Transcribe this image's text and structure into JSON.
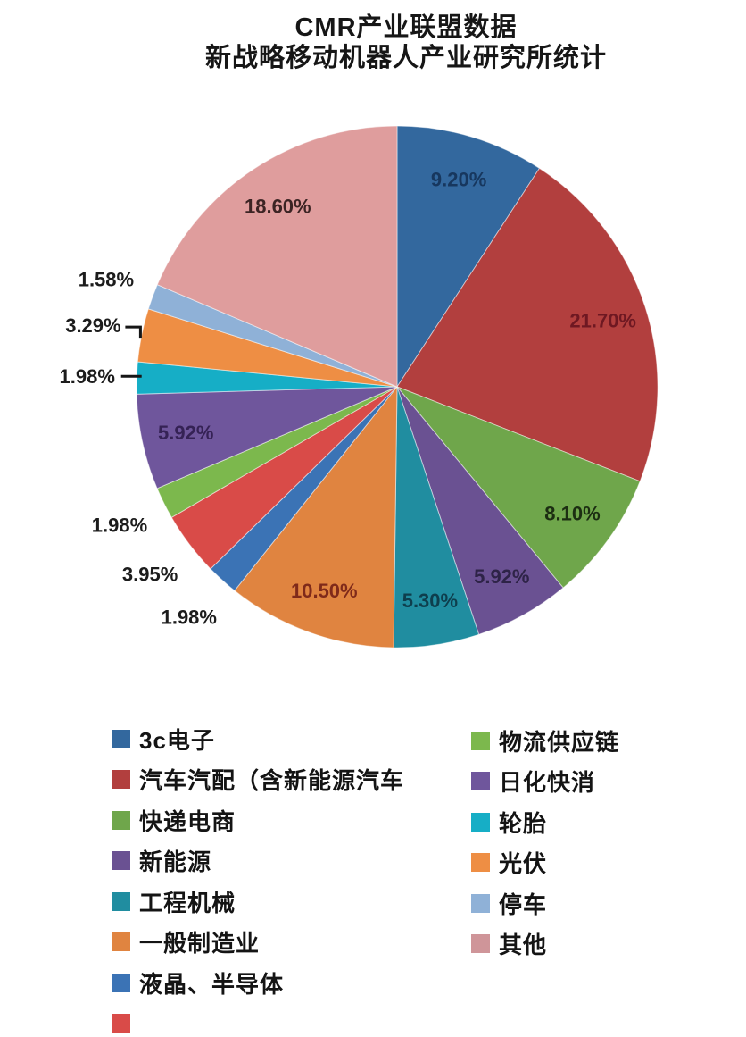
{
  "title": {
    "line1": "CMR产业联盟数据",
    "line2": "新战略移动机器人产业研究所统计"
  },
  "chart_data": {
    "type": "pie",
    "start_angle_deg": 0,
    "direction": "clockwise",
    "grid": false,
    "legend_position": "bottom-two-columns",
    "slices": [
      {
        "label": "3c电子",
        "value": 9.2,
        "pct_label": "9.20%",
        "color": "#33689e",
        "pct_color": "#17375e",
        "label_placement": "inside",
        "leader": "none"
      },
      {
        "label": "汽车汽配（含新能源汽车",
        "value": 21.7,
        "pct_label": "21.70%",
        "color": "#b23f3e",
        "pct_color": "#6e1822",
        "label_placement": "inside",
        "leader": "none"
      },
      {
        "label": "快递电商",
        "value": 8.1,
        "pct_label": "8.10%",
        "color": "#6fa64b",
        "pct_color": "#1c2e12",
        "label_placement": "inside",
        "leader": "none"
      },
      {
        "label": "新能源",
        "value": 5.92,
        "pct_label": "5.92%",
        "color": "#6a5192",
        "pct_color": "#2e2347",
        "label_placement": "inside",
        "leader": "none"
      },
      {
        "label": "工程机械",
        "value": 5.3,
        "pct_label": "5.30%",
        "color": "#208da0",
        "pct_color": "#0e3e4d",
        "label_placement": "inside",
        "leader": "none"
      },
      {
        "label": "一般制造业",
        "value": 10.5,
        "pct_label": "10.50%",
        "color": "#e08440",
        "pct_color": "#7f2a1a",
        "label_placement": "inside",
        "leader": "none"
      },
      {
        "label": "液晶、半导体",
        "value": 1.98,
        "pct_label": "1.98%",
        "color": "#3b73b5",
        "pct_color": "#1c1c1c",
        "label_placement": "outside",
        "leader": "none"
      },
      {
        "label": "",
        "value": 3.95,
        "pct_label": "3.95%",
        "color": "#d94b48",
        "pct_color": "#1c1c1c",
        "label_placement": "outside",
        "leader": "none"
      },
      {
        "label": "物流供应链",
        "value": 1.98,
        "pct_label": "1.98%",
        "color": "#7cb84d",
        "pct_color": "#1c1c1c",
        "label_placement": "outside",
        "leader": "none"
      },
      {
        "label": "日化快消",
        "value": 5.92,
        "pct_label": "5.92%",
        "color": "#6f569c",
        "pct_color": "#352255",
        "label_placement": "inside",
        "leader": "none"
      },
      {
        "label": "轮胎",
        "value": 1.98,
        "pct_label": "1.98%",
        "color": "#16aec6",
        "pct_color": "#1c1c1c",
        "label_placement": "outside",
        "leader": "straight"
      },
      {
        "label": "光伏",
        "value": 3.29,
        "pct_label": "3.29%",
        "color": "#ee8e44",
        "pct_color": "#1c1c1c",
        "label_placement": "outside",
        "leader": "elbow"
      },
      {
        "label": "停车",
        "value": 1.58,
        "pct_label": "1.58%",
        "color": "#8fb1d7",
        "pct_color": "#1c1c1c",
        "label_placement": "outside",
        "leader": "none"
      },
      {
        "label": "其他",
        "value": 18.6,
        "pct_label": "18.60%",
        "color": "#df9d9d",
        "pct_color": "#3c2424",
        "label_placement": "inside",
        "leader": "none"
      }
    ],
    "legend": {
      "left_column": [
        {
          "label": "3c电子",
          "color": "#33689e"
        },
        {
          "label": "汽车汽配（含新能源汽车",
          "color": "#b23f3e"
        },
        {
          "label": "快递电商",
          "color": "#6fa64b"
        },
        {
          "label": "新能源",
          "color": "#6a5192"
        },
        {
          "label": "工程机械",
          "color": "#208da0"
        },
        {
          "label": "一般制造业",
          "color": "#e08440"
        },
        {
          "label": "液晶、半导体",
          "color": "#3b73b5"
        },
        {
          "label": "",
          "color": "#d94b48"
        }
      ],
      "right_column": [
        {
          "label": "物流供应链",
          "color": "#7cb84d"
        },
        {
          "label": "日化快消",
          "color": "#6f569c"
        },
        {
          "label": "轮胎",
          "color": "#16aec6"
        },
        {
          "label": "光伏",
          "color": "#ee8e44"
        },
        {
          "label": "停车",
          "color": "#8fb1d7"
        },
        {
          "label": "其他",
          "color": "#cf9599"
        }
      ]
    }
  }
}
